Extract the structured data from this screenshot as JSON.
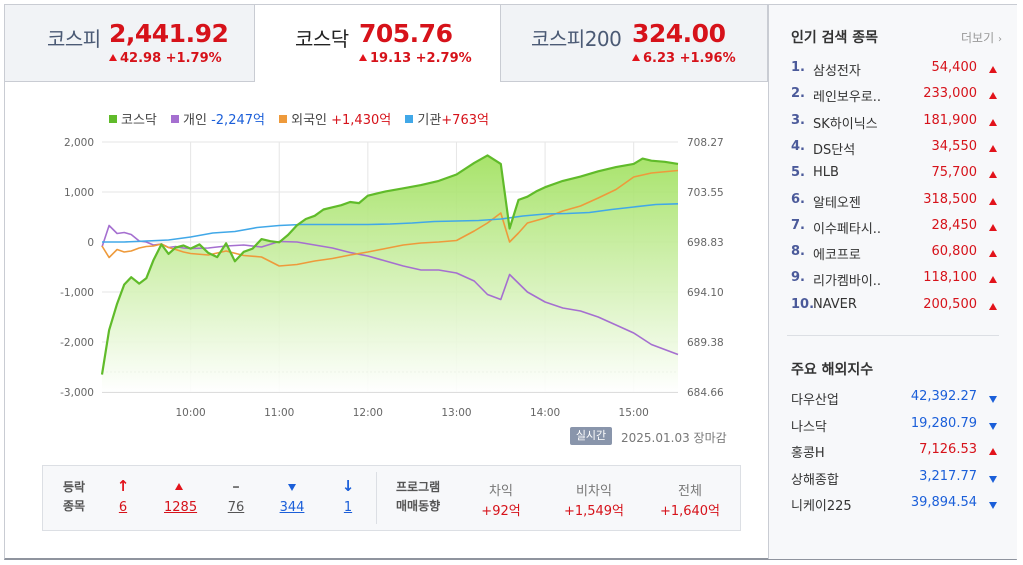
{
  "tabs": [
    {
      "name": "코스피",
      "value": "2,441.92",
      "change": "42.98 +1.79%"
    },
    {
      "name": "코스닥",
      "value": "705.76",
      "change": "19.13 +2.79%"
    },
    {
      "name": "코스피200",
      "value": "324.00",
      "change": "6.23 +1.96%"
    }
  ],
  "legend": {
    "kosdaq": "코스닥",
    "individual_label": "개인",
    "individual_value": "-2,247억",
    "foreign_label": "외국인",
    "foreign_value": "+1,430억",
    "inst_label": "기관",
    "inst_value": "+763억"
  },
  "colors": {
    "kosdaq": "#60bb2a",
    "individual": "#a56fd0",
    "foreign": "#ee9a3b",
    "inst": "#41a8e8",
    "up": "#d6121a",
    "down": "#1b5fd9"
  },
  "chart_data": {
    "type": "line",
    "x_ticks": [
      "10:00",
      "11:00",
      "12:00",
      "13:00",
      "14:00",
      "15:00"
    ],
    "y_left_ticks": [
      "2,000",
      "1,000",
      "0",
      "-1,000",
      "-2,000",
      "-3,000"
    ],
    "y_right_ticks": [
      "708.27",
      "703.55",
      "698.83",
      "694.10",
      "689.38",
      "684.66"
    ],
    "y_left_range": [
      -3000,
      2000
    ],
    "y_right_range": [
      684.66,
      708.27
    ],
    "x_range": [
      "09:00",
      "15:30"
    ],
    "reference_line_left": -2600,
    "series": [
      {
        "name": "코스닥",
        "axis": "right",
        "x": [
          9.0,
          9.08,
          9.17,
          9.25,
          9.33,
          9.42,
          9.5,
          9.58,
          9.67,
          9.75,
          9.83,
          9.92,
          10.0,
          10.1,
          10.2,
          10.3,
          10.4,
          10.5,
          10.6,
          10.7,
          10.8,
          10.9,
          11.0,
          11.1,
          11.2,
          11.3,
          11.4,
          11.5,
          11.6,
          11.7,
          11.8,
          11.9,
          12.0,
          12.2,
          12.4,
          12.6,
          12.8,
          13.0,
          13.2,
          13.35,
          13.5,
          13.6,
          13.7,
          13.8,
          13.9,
          14.0,
          14.2,
          14.4,
          14.6,
          14.8,
          15.0,
          15.1,
          15.2,
          15.35,
          15.5
        ],
        "values": [
          686.3,
          690.5,
          693.0,
          694.8,
          695.5,
          694.9,
          695.4,
          697.1,
          698.6,
          697.7,
          698.3,
          698.5,
          698.2,
          698.6,
          697.8,
          697.4,
          698.7,
          697.0,
          697.9,
          698.2,
          699.1,
          698.9,
          698.8,
          699.5,
          700.4,
          701.0,
          701.3,
          701.9,
          702.1,
          702.3,
          702.6,
          702.5,
          703.2,
          703.6,
          703.9,
          704.2,
          704.6,
          705.2,
          706.3,
          707.0,
          706.2,
          700.1,
          702.8,
          703.1,
          703.6,
          704.0,
          704.6,
          705.0,
          705.5,
          705.9,
          706.2,
          706.7,
          706.5,
          706.4,
          706.2
        ]
      },
      {
        "name": "개인",
        "axis": "left",
        "x": [
          9.0,
          9.08,
          9.17,
          9.25,
          9.33,
          9.42,
          9.5,
          9.58,
          9.67,
          9.75,
          9.83,
          9.92,
          10.0,
          10.2,
          10.4,
          10.6,
          10.8,
          11.0,
          11.2,
          11.4,
          11.6,
          11.8,
          12.0,
          12.2,
          12.4,
          12.6,
          12.8,
          13.0,
          13.2,
          13.35,
          13.5,
          13.6,
          13.8,
          14.0,
          14.2,
          14.4,
          14.6,
          14.8,
          15.0,
          15.2,
          15.5
        ],
        "values": [
          -100,
          330,
          170,
          190,
          150,
          20,
          0,
          -60,
          -40,
          -110,
          -90,
          -120,
          -130,
          -120,
          -80,
          -60,
          -100,
          10,
          0,
          -60,
          -120,
          -210,
          -280,
          -380,
          -480,
          -560,
          -560,
          -620,
          -780,
          -1050,
          -1150,
          -650,
          -1000,
          -1200,
          -1320,
          -1380,
          -1500,
          -1660,
          -1820,
          -2050,
          -2250
        ]
      },
      {
        "name": "외국인",
        "axis": "left",
        "x": [
          9.0,
          9.08,
          9.17,
          9.25,
          9.33,
          9.42,
          9.5,
          9.58,
          9.67,
          9.75,
          9.83,
          9.92,
          10.0,
          10.2,
          10.4,
          10.6,
          10.8,
          11.0,
          11.2,
          11.4,
          11.6,
          11.8,
          12.0,
          12.2,
          12.4,
          12.6,
          12.8,
          13.0,
          13.2,
          13.35,
          13.5,
          13.6,
          13.7,
          13.8,
          14.0,
          14.2,
          14.4,
          14.6,
          14.8,
          15.0,
          15.2,
          15.5
        ],
        "values": [
          -80,
          -310,
          -150,
          -200,
          -180,
          -120,
          -90,
          -80,
          -40,
          -110,
          -150,
          -200,
          -230,
          -260,
          -180,
          -270,
          -300,
          -480,
          -450,
          -380,
          -330,
          -260,
          -200,
          -130,
          -60,
          -20,
          0,
          30,
          220,
          380,
          580,
          0,
          180,
          380,
          480,
          620,
          720,
          880,
          1050,
          1300,
          1380,
          1430
        ]
      },
      {
        "name": "기관",
        "axis": "left",
        "x": [
          9.0,
          9.25,
          9.5,
          9.75,
          10.0,
          10.25,
          10.5,
          10.75,
          11.0,
          11.25,
          11.5,
          11.75,
          12.0,
          12.25,
          12.5,
          12.75,
          13.0,
          13.25,
          13.5,
          13.75,
          14.0,
          14.25,
          14.5,
          14.75,
          15.0,
          15.25,
          15.5
        ],
        "values": [
          0,
          0,
          20,
          40,
          100,
          180,
          210,
          290,
          330,
          350,
          350,
          350,
          350,
          360,
          380,
          410,
          420,
          430,
          460,
          520,
          560,
          570,
          590,
          650,
          700,
          750,
          763
        ]
      }
    ]
  },
  "realtime_button": "실시간",
  "date": "2025.01.03",
  "market_status": "장마감",
  "breadth": {
    "label_line1": "등락",
    "label_line2": "종목",
    "items": [
      {
        "icon": "limit-up-arrow",
        "count": "6"
      },
      {
        "icon": "up-triangle",
        "count": "1285"
      },
      {
        "icon": "flat-dash",
        "count": "76"
      },
      {
        "icon": "down-triangle",
        "count": "344"
      },
      {
        "icon": "limit-down-arrow",
        "count": "1"
      }
    ]
  },
  "program": {
    "label_line1": "프로그램",
    "label_line2": "매매동향",
    "arbitrage_label": "차익",
    "arbitrage_value": "+92억",
    "non_arbitrage_label": "비차익",
    "non_arbitrage_value": "+1,549억",
    "total_label": "전체",
    "total_value": "+1,640억"
  },
  "popular": {
    "title": "인기 검색 종목",
    "more": "더보기",
    "items": [
      {
        "rank": "1.",
        "name": "삼성전자",
        "price": "54,400"
      },
      {
        "rank": "2.",
        "name": "레인보우로..",
        "price": "233,000"
      },
      {
        "rank": "3.",
        "name": "SK하이닉스",
        "price": "181,900"
      },
      {
        "rank": "4.",
        "name": "DS단석",
        "price": "34,550"
      },
      {
        "rank": "5.",
        "name": "HLB",
        "price": "75,700"
      },
      {
        "rank": "6.",
        "name": "알테오젠",
        "price": "318,500"
      },
      {
        "rank": "7.",
        "name": "이수페타시..",
        "price": "28,450"
      },
      {
        "rank": "8.",
        "name": "에코프로",
        "price": "60,800"
      },
      {
        "rank": "9.",
        "name": "리가켐바이..",
        "price": "118,100"
      },
      {
        "rank": "10.",
        "name": "NAVER",
        "price": "200,500"
      }
    ]
  },
  "world": {
    "title": "주요 해외지수",
    "items": [
      {
        "name": "다우산업",
        "value": "42,392.27",
        "dir": "down"
      },
      {
        "name": "나스닥",
        "value": "19,280.79",
        "dir": "down"
      },
      {
        "name": "홍콩H",
        "value": "7,126.53",
        "dir": "up"
      },
      {
        "name": "상해종합",
        "value": "3,217.77",
        "dir": "down"
      },
      {
        "name": "니케이225",
        "value": "39,894.54",
        "dir": "down"
      }
    ]
  }
}
